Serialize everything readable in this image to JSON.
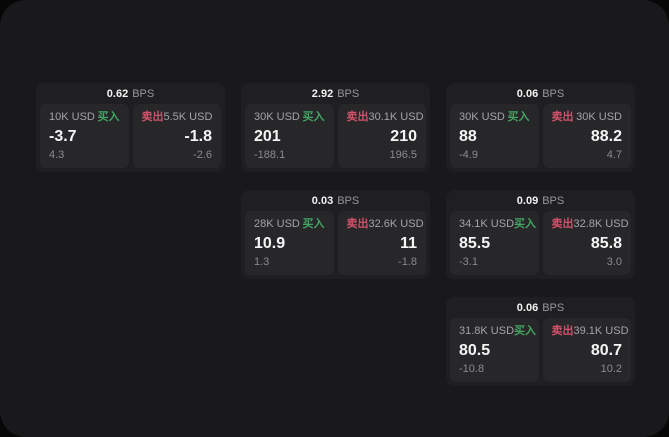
{
  "page": {
    "background": "#19191b",
    "backdrop": "#070708"
  },
  "labels": {
    "bps": "BPS",
    "buy": "买入",
    "sell": "卖出"
  },
  "colors": {
    "buy_accent": "#43a563",
    "sell_accent": "#cf526a",
    "value_text": "#f5f5f6",
    "muted_text": "#8b8b8f"
  },
  "cards": [
    {
      "bps": "0.62",
      "buy": {
        "amount": "10K USD",
        "price": "-3.7",
        "change": "4.3"
      },
      "sell": {
        "amount": "5.5K USD",
        "price": "-1.8",
        "change": "-2.6"
      }
    },
    {
      "bps": "2.92",
      "buy": {
        "amount": "30K USD",
        "price": "201",
        "change": "-188.1"
      },
      "sell": {
        "amount": "30.1K USD",
        "price": "210",
        "change": "196.5"
      }
    },
    {
      "bps": "0.06",
      "buy": {
        "amount": "30K USD",
        "price": "88",
        "change": "-4.9"
      },
      "sell": {
        "amount": "30K USD",
        "price": "88.2",
        "change": "4.7"
      }
    },
    {
      "bps": "0.03",
      "buy": {
        "amount": "28K USD",
        "price": "10.9",
        "change": "1.3"
      },
      "sell": {
        "amount": "32.6K USD",
        "price": "11",
        "change": "-1.8"
      }
    },
    {
      "bps": "0.09",
      "buy": {
        "amount": "34.1K USD",
        "price": "85.5",
        "change": "-3.1"
      },
      "sell": {
        "amount": "32.8K USD",
        "price": "85.8",
        "change": "3.0"
      }
    },
    {
      "bps": "0.06",
      "buy": {
        "amount": "31.8K USD",
        "price": "80.5",
        "change": "-10.8"
      },
      "sell": {
        "amount": "39.1K USD",
        "price": "80.7",
        "change": "10.2"
      }
    }
  ]
}
